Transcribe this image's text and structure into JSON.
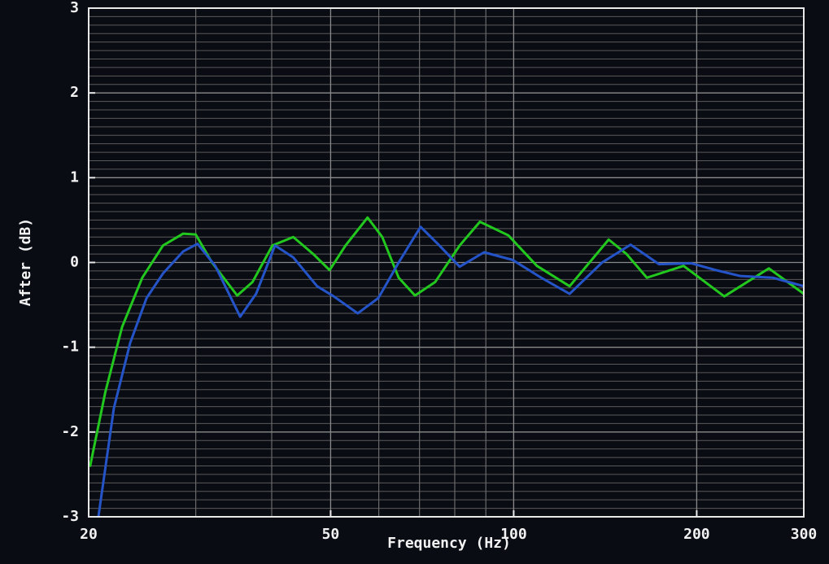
{
  "chart_data": {
    "type": "line",
    "x_label": "Frequency (Hz)",
    "y_label": "After (dB)",
    "xscale": "log",
    "xlim": [
      20,
      300
    ],
    "ylim": [
      -3,
      3
    ],
    "xticks": [
      20,
      50,
      100,
      200,
      300
    ],
    "minor_xticks": [
      30,
      40,
      60,
      70,
      80,
      90
    ],
    "yticks": [
      -3,
      -2,
      -1,
      0,
      1,
      2,
      3
    ],
    "minor_yticks": [
      -2.9,
      -2.8,
      -2.7,
      -2.6,
      -2.5,
      -2.4,
      -2.3,
      -2.2,
      -2.1,
      -1.9,
      -1.8,
      -1.7,
      -1.6,
      -1.5,
      -1.4,
      -1.3,
      -1.2,
      -1.1,
      -0.9,
      -0.8,
      -0.7,
      -0.6,
      -0.5,
      -0.4,
      -0.3,
      -0.2,
      -0.1,
      0.1,
      0.2,
      0.3,
      0.4,
      0.5,
      0.6,
      0.7,
      0.8,
      0.9,
      1.1,
      1.2,
      1.3,
      1.4,
      1.5,
      1.6,
      1.7,
      1.8,
      1.9,
      2.1,
      2.2,
      2.3,
      2.4,
      2.5,
      2.6,
      2.7,
      2.8,
      2.9
    ],
    "grid": true,
    "series": [
      {
        "color": "#22c81e",
        "x": [
          20.1,
          21.3,
          22.7,
          24.5,
          26.5,
          28.6,
          30,
          31.9,
          35.1,
          37.2,
          40.1,
          43.4,
          46.8,
          49.8,
          52.9,
          57.5,
          60.8,
          64.7,
          68.8,
          74.3,
          81.5,
          88,
          98,
          109.2,
          123.6,
          143.3,
          153.3,
          165.6,
          190.3,
          222,
          262.9,
          300
        ],
        "values": [
          -2.41,
          -1.53,
          -0.76,
          -0.18,
          0.2,
          0.34,
          0.33,
          0,
          -0.39,
          -0.23,
          0.2,
          0.3,
          0.1,
          -0.09,
          0.2,
          0.53,
          0.3,
          -0.18,
          -0.39,
          -0.23,
          0.2,
          0.48,
          0.32,
          -0.04,
          -0.28,
          0.27,
          0.1,
          -0.18,
          -0.04,
          -0.4,
          -0.07,
          -0.37
        ]
      },
      {
        "color": "#2454c8",
        "x": [
          20.75,
          22,
          23.4,
          24.9,
          26.5,
          28.6,
          30.2,
          32.3,
          35.5,
          37.7,
          40.5,
          43.4,
          47.5,
          50.6,
          55.4,
          59.9,
          64.7,
          70.3,
          75.5,
          81.5,
          89.4,
          99.6,
          111,
          123.6,
          139.8,
          155.7,
          173.4,
          196.1,
          215,
          236,
          266.9,
          300
        ],
        "values": [
          -3.0,
          -1.72,
          -0.95,
          -0.42,
          -0.13,
          0.13,
          0.22,
          -0.04,
          -0.64,
          -0.37,
          0.2,
          0.06,
          -0.28,
          -0.4,
          -0.6,
          -0.42,
          0,
          0.42,
          0.2,
          -0.05,
          0.12,
          0.03,
          -0.18,
          -0.37,
          0,
          0.21,
          -0.02,
          -0.01,
          -0.09,
          -0.16,
          -0.18,
          -0.28
        ]
      }
    ]
  }
}
